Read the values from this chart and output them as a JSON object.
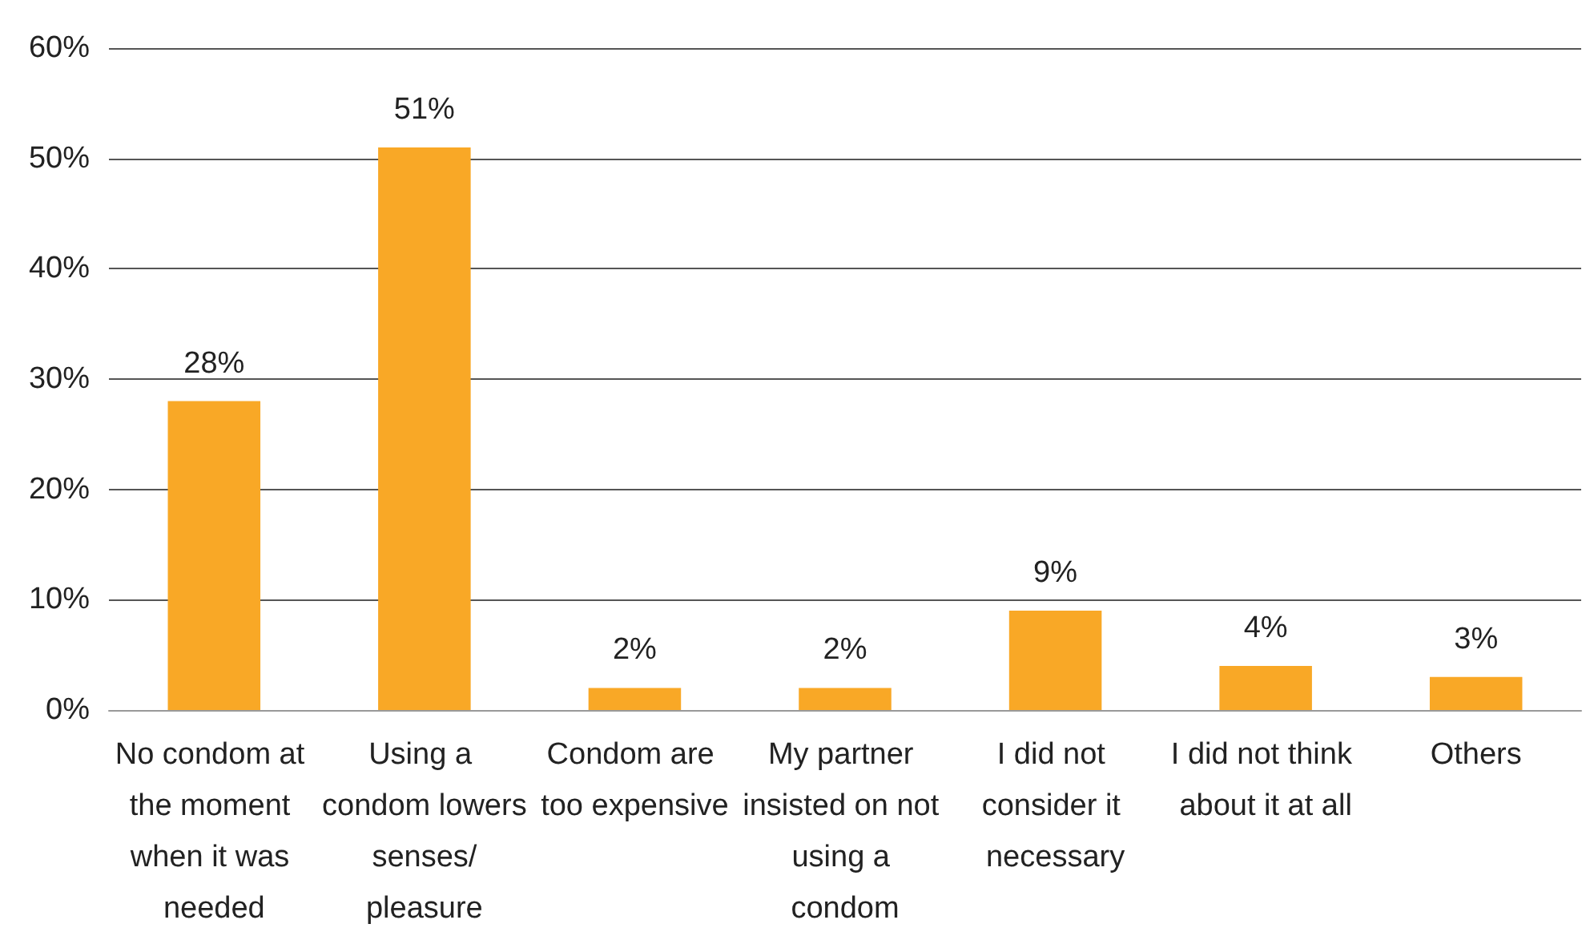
{
  "chart_data": {
    "type": "bar",
    "categories": [
      "No condom at the moment when it was needed",
      "Using a condom lowers senses/ pleasure",
      "Condom are too expensive",
      "My partner insisted on not using a condom",
      "I did not consider it necessary",
      "I did not think about it at all",
      "Others"
    ],
    "values": [
      28,
      51,
      2,
      2,
      9,
      4,
      3
    ],
    "value_labels": [
      "28%",
      "51%",
      "2%",
      "2%",
      "9%",
      "4%",
      "3%"
    ],
    "color": "#f9a826",
    "ylim": [
      0,
      60
    ],
    "yticks": [
      {
        "value": 0,
        "label": "0%"
      },
      {
        "value": 10,
        "label": "10%"
      },
      {
        "value": 20,
        "label": "20%"
      },
      {
        "value": 30,
        "label": "30%"
      },
      {
        "value": 40,
        "label": "40%"
      },
      {
        "value": 50,
        "label": "50%"
      },
      {
        "value": 60,
        "label": "60%"
      }
    ],
    "grid": "y"
  }
}
